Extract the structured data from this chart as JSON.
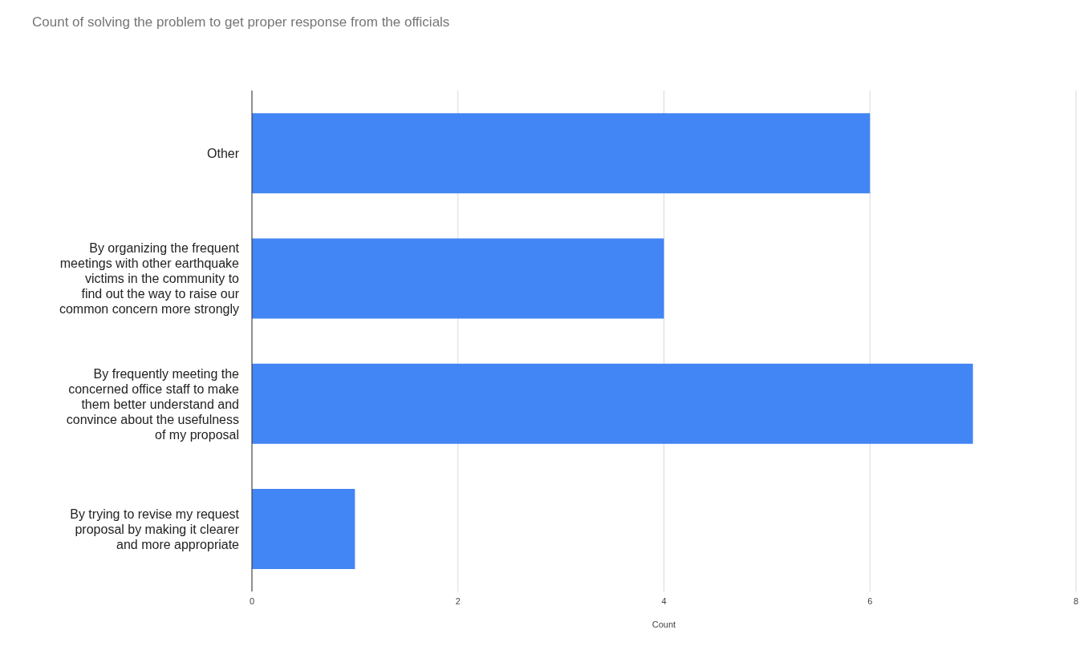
{
  "chart_data": {
    "type": "bar",
    "orientation": "horizontal",
    "title": "Count of solving the problem to get proper response from the officials",
    "xlabel": "Count",
    "categories": [
      "Other",
      "By organizing the frequent meetings with other earthquake victims in the community to find out the way to raise our common concern more strongly",
      "By frequently meeting the concerned office staff to make them better understand and convince about the usefulness of my proposal",
      "By trying to revise my request proposal by making it clearer and more appropriate"
    ],
    "values": [
      6,
      4,
      7,
      1
    ],
    "color": "#4285f4",
    "xlim": [
      0,
      8
    ],
    "xticks": [
      0,
      2,
      4,
      6,
      8
    ],
    "grid": "x",
    "legend": false
  }
}
